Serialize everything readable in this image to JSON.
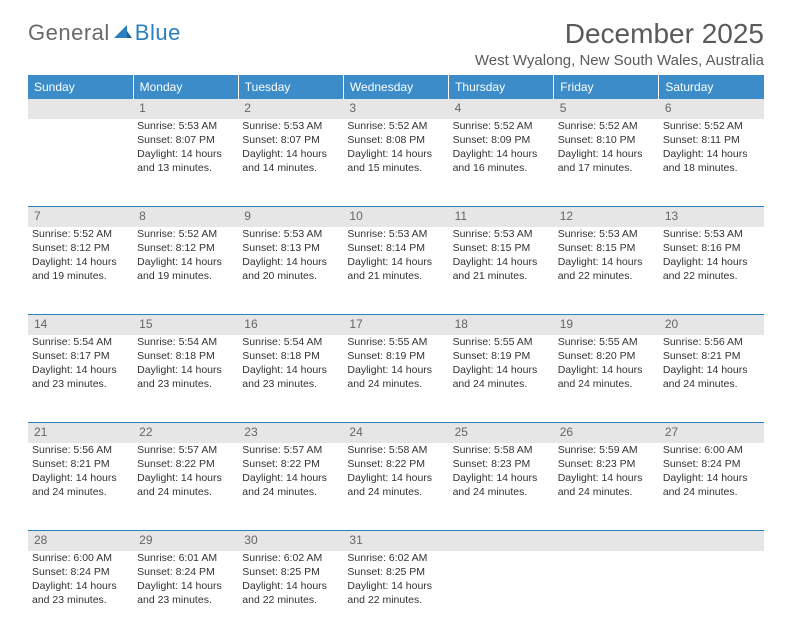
{
  "logo": {
    "part1": "General",
    "part2": "Blue"
  },
  "title": "December 2025",
  "subtitle": "West Wyalong, New South Wales, Australia",
  "colors": {
    "header_bg": "#3b8cc9",
    "header_text": "#ffffff",
    "daynum_bg": "#e6e6e6",
    "daynum_text": "#666666",
    "rule": "#2a7fbf",
    "logo_gray": "#6a6a6a",
    "logo_blue": "#2a7fbf",
    "title_color": "#5a5a5a",
    "body_text": "#333333"
  },
  "weekdays": [
    "Sunday",
    "Monday",
    "Tuesday",
    "Wednesday",
    "Thursday",
    "Friday",
    "Saturday"
  ],
  "weeks": [
    [
      null,
      {
        "day": "1",
        "sunrise": "5:53 AM",
        "sunset": "8:07 PM",
        "daylight": "14 hours and 13 minutes."
      },
      {
        "day": "2",
        "sunrise": "5:53 AM",
        "sunset": "8:07 PM",
        "daylight": "14 hours and 14 minutes."
      },
      {
        "day": "3",
        "sunrise": "5:52 AM",
        "sunset": "8:08 PM",
        "daylight": "14 hours and 15 minutes."
      },
      {
        "day": "4",
        "sunrise": "5:52 AM",
        "sunset": "8:09 PM",
        "daylight": "14 hours and 16 minutes."
      },
      {
        "day": "5",
        "sunrise": "5:52 AM",
        "sunset": "8:10 PM",
        "daylight": "14 hours and 17 minutes."
      },
      {
        "day": "6",
        "sunrise": "5:52 AM",
        "sunset": "8:11 PM",
        "daylight": "14 hours and 18 minutes."
      }
    ],
    [
      {
        "day": "7",
        "sunrise": "5:52 AM",
        "sunset": "8:12 PM",
        "daylight": "14 hours and 19 minutes."
      },
      {
        "day": "8",
        "sunrise": "5:52 AM",
        "sunset": "8:12 PM",
        "daylight": "14 hours and 19 minutes."
      },
      {
        "day": "9",
        "sunrise": "5:53 AM",
        "sunset": "8:13 PM",
        "daylight": "14 hours and 20 minutes."
      },
      {
        "day": "10",
        "sunrise": "5:53 AM",
        "sunset": "8:14 PM",
        "daylight": "14 hours and 21 minutes."
      },
      {
        "day": "11",
        "sunrise": "5:53 AM",
        "sunset": "8:15 PM",
        "daylight": "14 hours and 21 minutes."
      },
      {
        "day": "12",
        "sunrise": "5:53 AM",
        "sunset": "8:15 PM",
        "daylight": "14 hours and 22 minutes."
      },
      {
        "day": "13",
        "sunrise": "5:53 AM",
        "sunset": "8:16 PM",
        "daylight": "14 hours and 22 minutes."
      }
    ],
    [
      {
        "day": "14",
        "sunrise": "5:54 AM",
        "sunset": "8:17 PM",
        "daylight": "14 hours and 23 minutes."
      },
      {
        "day": "15",
        "sunrise": "5:54 AM",
        "sunset": "8:18 PM",
        "daylight": "14 hours and 23 minutes."
      },
      {
        "day": "16",
        "sunrise": "5:54 AM",
        "sunset": "8:18 PM",
        "daylight": "14 hours and 23 minutes."
      },
      {
        "day": "17",
        "sunrise": "5:55 AM",
        "sunset": "8:19 PM",
        "daylight": "14 hours and 24 minutes."
      },
      {
        "day": "18",
        "sunrise": "5:55 AM",
        "sunset": "8:19 PM",
        "daylight": "14 hours and 24 minutes."
      },
      {
        "day": "19",
        "sunrise": "5:55 AM",
        "sunset": "8:20 PM",
        "daylight": "14 hours and 24 minutes."
      },
      {
        "day": "20",
        "sunrise": "5:56 AM",
        "sunset": "8:21 PM",
        "daylight": "14 hours and 24 minutes."
      }
    ],
    [
      {
        "day": "21",
        "sunrise": "5:56 AM",
        "sunset": "8:21 PM",
        "daylight": "14 hours and 24 minutes."
      },
      {
        "day": "22",
        "sunrise": "5:57 AM",
        "sunset": "8:22 PM",
        "daylight": "14 hours and 24 minutes."
      },
      {
        "day": "23",
        "sunrise": "5:57 AM",
        "sunset": "8:22 PM",
        "daylight": "14 hours and 24 minutes."
      },
      {
        "day": "24",
        "sunrise": "5:58 AM",
        "sunset": "8:22 PM",
        "daylight": "14 hours and 24 minutes."
      },
      {
        "day": "25",
        "sunrise": "5:58 AM",
        "sunset": "8:23 PM",
        "daylight": "14 hours and 24 minutes."
      },
      {
        "day": "26",
        "sunrise": "5:59 AM",
        "sunset": "8:23 PM",
        "daylight": "14 hours and 24 minutes."
      },
      {
        "day": "27",
        "sunrise": "6:00 AM",
        "sunset": "8:24 PM",
        "daylight": "14 hours and 24 minutes."
      }
    ],
    [
      {
        "day": "28",
        "sunrise": "6:00 AM",
        "sunset": "8:24 PM",
        "daylight": "14 hours and 23 minutes."
      },
      {
        "day": "29",
        "sunrise": "6:01 AM",
        "sunset": "8:24 PM",
        "daylight": "14 hours and 23 minutes."
      },
      {
        "day": "30",
        "sunrise": "6:02 AM",
        "sunset": "8:25 PM",
        "daylight": "14 hours and 22 minutes."
      },
      {
        "day": "31",
        "sunrise": "6:02 AM",
        "sunset": "8:25 PM",
        "daylight": "14 hours and 22 minutes."
      },
      null,
      null,
      null
    ]
  ],
  "labels": {
    "sunrise": "Sunrise:",
    "sunset": "Sunset:",
    "daylight": "Daylight:"
  }
}
